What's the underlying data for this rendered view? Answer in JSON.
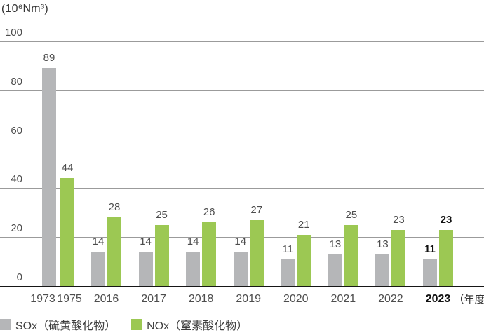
{
  "chart_data": {
    "type": "bar",
    "title": "",
    "unit_label": "(10⁶Nm³)",
    "x_suffix": "（年度）",
    "xlabel": "",
    "ylabel": "",
    "ylim": [
      0,
      100
    ],
    "yticks": [
      100,
      80,
      60,
      40,
      20,
      0
    ],
    "grid": true,
    "legend_position": "bottom-left",
    "series": [
      {
        "key": "sox",
        "name": "SOx（硫黄酸化物）",
        "color": "#b5b6b8"
      },
      {
        "key": "nox",
        "name": "NOx（窒素酸化物）",
        "color": "#9cc853"
      }
    ],
    "groups": [
      {
        "year": "1973",
        "sox": 89
      },
      {
        "year": "1975",
        "nox": 44
      },
      {
        "year": "2016",
        "sox": 14,
        "nox": 28
      },
      {
        "year": "2017",
        "sox": 14,
        "nox": 25
      },
      {
        "year": "2018",
        "sox": 14,
        "nox": 26
      },
      {
        "year": "2019",
        "sox": 14,
        "nox": 27
      },
      {
        "year": "2020",
        "sox": 11,
        "nox": 21
      },
      {
        "year": "2021",
        "sox": 13,
        "nox": 25
      },
      {
        "year": "2022",
        "sox": 13,
        "nox": 23
      },
      {
        "year": "2023",
        "sox": 11,
        "nox": 23,
        "emphasis": true
      }
    ],
    "colors": {
      "axis": "#161616",
      "grid": "#9b9b9b",
      "tick_text": "#4d4d4d",
      "value_text": "#4d4d4d",
      "emphasis_text": "#111111"
    }
  }
}
